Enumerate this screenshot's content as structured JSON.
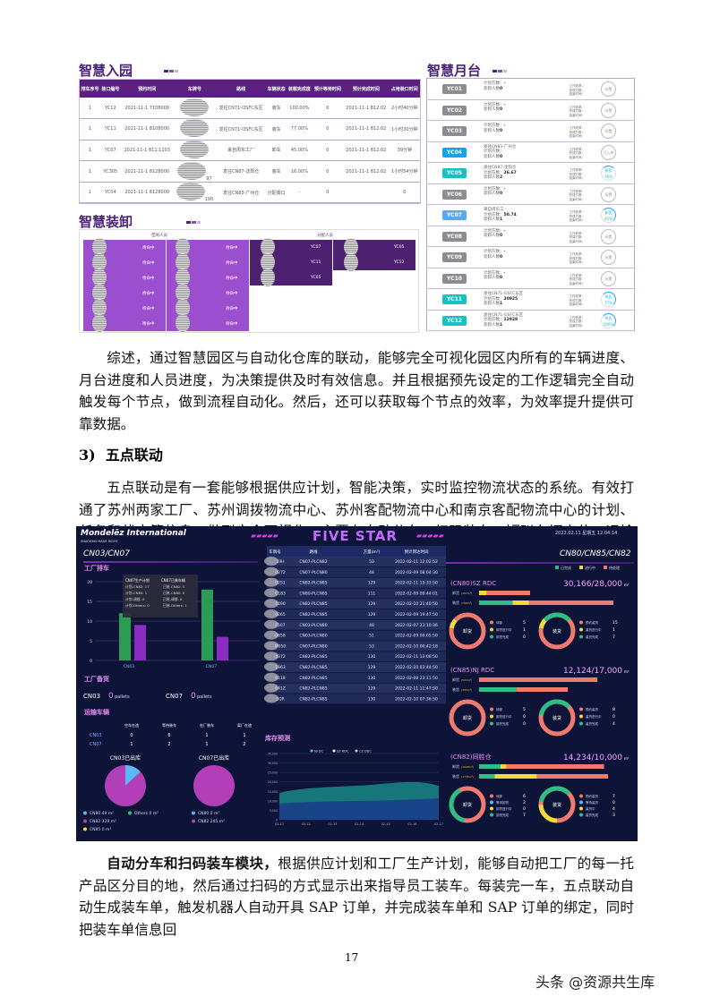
{
  "entry": {
    "title": "智慧入园",
    "headers": [
      "排车序号",
      "装口编号",
      "预约时间",
      "车牌号",
      "路线",
      "车辆状态",
      "装载完成度",
      "预计等待时间",
      "预计完成时间",
      "占用装口时间"
    ],
    "rows": [
      [
        "1",
        "YC12",
        "2021-11-1 7108000",
        "",
        "发往CN71-OSFC东区",
        "装车",
        "100.00%",
        "0",
        "2021-11-1 812:02",
        "2小时40分钟"
      ],
      [
        "1",
        "YC11",
        "2021-11-1 8108000",
        "",
        "发往CN71-OSFC东区",
        "装车",
        "77.00%",
        "0",
        "2021-11-1 812:02",
        "1小时30分钟"
      ],
      [
        "1",
        "YC07",
        "2021-11-1 811:1103",
        "",
        "来自周东工厂",
        "卸车",
        "45.00%",
        "0",
        "2021-11-1 812:02",
        "39分钟"
      ],
      [
        "1",
        "YC305",
        "2021-11-1 8128000",
        "97",
        "发往CN87-沈阳仓",
        "装车",
        "16.00%",
        "0",
        "2021-11-1 812:02",
        "1小时54分钟"
      ],
      [
        "1",
        "YC04",
        "2021-11-1 8128000",
        "190",
        "发往CN83-广州仓",
        "分配装口",
        "-",
        "0",
        "",
        "0"
      ]
    ]
  },
  "loading": {
    "title": "智慧装卸",
    "idle_label": "空闲人员",
    "assigned_label": "分配人员",
    "idle_status": "待命中",
    "assigned": [
      [
        "YC07",
        "YC05"
      ],
      [
        "YC11",
        "YC12"
      ],
      [
        "YC05",
        ""
      ]
    ]
  },
  "dock": {
    "title": "智慧月台",
    "plan_label": "计划方数：",
    "workers_label": "装卸人数",
    "eff_label": "工作效率：",
    "done_label": "完成方数：",
    "eta_label": "结束时间：",
    "rows": [
      {
        "id": "YC01",
        "color": "#8c8c92",
        "dest": "",
        "plan": "-",
        "workers": "0",
        "ring": "闲置",
        "pct": null
      },
      {
        "id": "YC02",
        "color": "#8c8c92",
        "dest": "",
        "plan": "-",
        "workers": "0",
        "ring": "闲置",
        "pct": null
      },
      {
        "id": "YC03",
        "color": "#8c8c92",
        "dest": "",
        "plan": "-",
        "workers": "0",
        "ring": "闲置",
        "pct": null
      },
      {
        "id": "YC04",
        "color": "#12a5ec",
        "dest": "发往CN83-广州仓",
        "plan": "",
        "workers": "0",
        "ring": "已入库",
        "pct": null
      },
      {
        "id": "YC05",
        "color": "#17c1c1",
        "dest": "发往CN87-沈阳仓",
        "plan": "26.67",
        "workers": "2",
        "ring": "装货 16%",
        "pct": 16
      },
      {
        "id": "YC06",
        "color": "#8c8c92",
        "dest": "",
        "plan": "-",
        "workers": "0",
        "ring": "闲置",
        "pct": null
      },
      {
        "id": "YC07",
        "color": "#5aa8f5",
        "dest": "来自周东工",
        "plan": "50.74",
        "workers": "1",
        "ring": "卸货 45%",
        "pct": 45
      },
      {
        "id": "YC08",
        "color": "#8c8c92",
        "dest": "",
        "plan": "-",
        "workers": "0",
        "ring": "闲置",
        "pct": null
      },
      {
        "id": "YC09",
        "color": "#8c8c92",
        "dest": "",
        "plan": "-",
        "workers": "0",
        "ring": "闲置",
        "pct": null
      },
      {
        "id": "YC10",
        "color": "#8c8c92",
        "dest": "",
        "plan": "-",
        "workers": "0",
        "ring": "闲置",
        "pct": null
      },
      {
        "id": "YC11",
        "color": "#17c1c1",
        "dest": "发往CN71-OSFC东区",
        "plan": "20925",
        "workers": "1",
        "ring": "装货 77%",
        "pct": 77
      },
      {
        "id": "YC12",
        "color": "#17c1c1",
        "dest": "发往CN71-OSFC东区",
        "plan": "12928",
        "workers": "1",
        "ring": "装货 100%",
        "pct": 100
      }
    ]
  },
  "para1": "综述，通过智慧园区与自动化仓库的联动，能够完全可视化园区内所有的车辆进度、月台进度和人员进度，为决策提供及时有效信息。并且根据预先设定的工作逻辑完全自动触发每个节点，做到流程自动化。然后，还可以获取每个节点的效率，为效率提升提供可靠数据。",
  "heading": "3)  五点联动",
  "para2": "五点联动是有一套能够根据供应计划，智能决策，实时监控物流状态的系统。有效打通了苏州两家工厂、苏州调拨物流中心、苏州客配物流中心和南京客配物流中心的计划、任务和状态等信息，做到完全可视化。主要有自动分车、扫码装车、短驳车辆定位、运输任务跟进等模块。",
  "para3_bold": "自动分车和扫码装车模块，",
  "para3": "根据供应计划和工厂生产计划，能够自动把工厂的每一托产品区分目的地，然后通过扫码的方式显示出来指导员工装车。每装完一车，五点联动自动生成装车单，触发机器人自动开具 SAP 订单，并完成装车单和 SAP 订单的绑定，同时把装车单信息回",
  "page_number": "17",
  "watermark": "头条 @资源共生库",
  "dashboard": {
    "logo": "Mondelēz International",
    "logo_sub": "SNACKING MADE RIGHT",
    "banner": "FIVE STAR",
    "datetime": "2022.02.11 星期五 12:04:14",
    "left_title": "CN03/CN07",
    "factory_title": "工厂排车",
    "bar_chart": {
      "categories": [
        "CN03",
        "CN07"
      ],
      "series": [
        {
          "values": [
            12,
            9
          ]
        },
        {
          "values": [
            18,
            6
          ]
        }
      ],
      "y_ticks": [
        "0",
        "5",
        "10",
        "15",
        "20"
      ],
      "ymax": 20
    },
    "tooltip": {
      "t1": "CN07生产计划",
      "t2": "CN07已装车辆",
      "l": [
        "计划-CN82: 17",
        "计划-CN80: 1",
        "计划-调拨: 0",
        "计划-Others: 0"
      ],
      "r": [
        "已装-CN82: 5",
        "已装-CN80: 0",
        "已装-调拨: 0",
        "已装-Others: 1"
      ]
    },
    "stock_title": "工厂备货",
    "stock": [
      {
        "site": "CN03",
        "value": "0",
        "unit": "pallets"
      },
      {
        "site": "CN07",
        "value": "0",
        "unit": "pallets"
      }
    ],
    "transport_title": "运输车辆",
    "transport_headers": [
      "",
      "空车在途",
      "等待装车",
      "在厂装车",
      "离厂在途"
    ],
    "transport_rows": [
      [
        "CN03",
        "0",
        "6",
        "1",
        "1"
      ],
      [
        "CN07",
        "1",
        "2",
        "1",
        "2"
      ]
    ],
    "pies": [
      {
        "title": "CN03已出库",
        "legend": [
          "CN80  49 m²",
          "Others  0 m²",
          "CN82  329 m²",
          "CN85  0 m²"
        ],
        "slice_pct": 13
      },
      {
        "title": "CN07已出库",
        "legend": [
          "CN80  0 m²",
          "CN82  245 m²"
        ],
        "slice_pct": 0
      }
    ],
    "truck_headers": [
      "车牌号",
      "路线",
      "方量(m³)",
      "预计到达时间"
    ],
    "trucks": [
      [
        "19H",
        "CN07-PLCN82",
        "50",
        "2022-02-11 12:02:52"
      ],
      [
        "0272",
        "CN07-PLCN80",
        "48",
        "2022-02-09 08:04:30"
      ],
      [
        "0251",
        "CN82-PLCN85",
        "129",
        "2022-02-11 15:33:50"
      ],
      [
        "C183",
        "CN80-PLCN85",
        "111",
        "2022-02-09 09:44:01"
      ],
      [
        "1090",
        "CN82-PLCN85",
        "129",
        "2022-02-10 21:40:50"
      ],
      [
        "0265",
        "CN82-PLCN85",
        "129",
        "2022-02-09 19:47:50"
      ],
      [
        "F507",
        "CN03-PLCN80",
        "48",
        "2022-02-07 23:10:36"
      ],
      [
        "0858",
        "CN03-PLCN80",
        "51",
        "2022-02-09 00:05:50"
      ],
      [
        "M050",
        "CN07-PLCN80",
        "53",
        "2022-02-10 00:42:18"
      ],
      [
        "4372",
        "CN82-PLCN85",
        "130",
        "2022-02-11 13:06:50"
      ],
      [
        "1963",
        "CN82-PLCN85",
        "129",
        "2022-02-10 03:44:50"
      ],
      [
        "0118",
        "CN82-PLCN85",
        "130",
        "2022-02-08 23:11:50"
      ],
      [
        "641Z",
        "CN82-PLCN85",
        "129",
        "2022-02-11 11:47:50"
      ],
      [
        "5QR",
        "CN82-PLCN85",
        "130",
        "2022-02-10 07:36:50"
      ]
    ],
    "forecast_title": "库存预测",
    "forecast_legend": [
      "NJ DC",
      "SZ RDC",
      "CZ DDC"
    ],
    "forecast_x": [
      "02-11",
      "02-12",
      "02-13",
      "02-14",
      "02-15",
      "02-16",
      "02-17"
    ],
    "forecast_y": [
      "0",
      "5,000",
      "10,000",
      "15,000",
      "20,000",
      "25,000",
      "30,000",
      "35,000"
    ],
    "right_title": "CN80/CN85/CN82",
    "status_legend": [
      "已完成",
      "进行中",
      "待处理"
    ],
    "sites": [
      {
        "name": "(CN80)SZ RDC",
        "capacity": "30,166/28,000",
        "unit": "m²",
        "bars": [
          {
            "label": "卸货",
            "sub": "(302m³)",
            "seg": [
              0,
              15,
              85
            ],
            "len": 0.38
          },
          {
            "label": "装货",
            "sub": "(768m³)",
            "seg": [
              25,
              12,
              63
            ],
            "len": 1
          }
        ],
        "donuts": [
          {
            "center": "卸货",
            "items": [
              [
                "待卸",
                "5"
              ],
              [
                "卸货进行中",
                "1"
              ],
              [
                "卸货完成",
                "0"
              ]
            ]
          },
          {
            "center": "装货",
            "items": [
              [
                "预约装货",
                "15"
              ],
              [
                "装货进行中",
                "1"
              ],
              [
                "装货完成",
                "7"
              ]
            ]
          }
        ]
      },
      {
        "name": "(CN85)NJ RDC",
        "capacity": "12,124/17,000",
        "unit": "m²",
        "bars": [
          {
            "label": "卸货",
            "sub": "(531m³)",
            "seg": [
              0,
              0,
              100
            ],
            "len": 0.88
          },
          {
            "label": "装货",
            "sub": "(399m³)",
            "seg": [
              42,
              0,
              58
            ],
            "len": 0.66
          }
        ],
        "donuts": [
          {
            "center": "卸货",
            "items": [
              [
                "待卸",
                "5"
              ],
              [
                "卸货进行中",
                "0"
              ],
              [
                "卸货完成",
                "0"
              ]
            ]
          },
          {
            "center": "装货",
            "items": [
              [
                "预约装货",
                "8"
              ],
              [
                "装货进行中",
                "0"
              ],
              [
                "装货完成",
                "4"
              ]
            ]
          }
        ]
      },
      {
        "name": "(CN82)同胜仓",
        "capacity": "14,234/10,000",
        "unit": "m²",
        "bars": [
          {
            "label": "卸货",
            "sub": "(1608m³)",
            "seg": [
              17,
              5,
              78
            ],
            "len": 0.93
          },
          {
            "label": "装货",
            "sub": "(1735m³)",
            "seg": [
              12,
              33,
              55
            ],
            "len": 0.96
          }
        ],
        "donuts": [
          {
            "center": "卸货",
            "items": [
              [
                "待卸",
                "6"
              ],
              [
                "等待卸货",
                "2"
              ],
              [
                "卸货进行中",
                "0"
              ],
              [
                "卸货完成",
                "7"
              ]
            ]
          },
          {
            "center": "装货",
            "items": [
              [
                "预约装货",
                "7"
              ],
              [
                "等待装货",
                "0"
              ],
              [
                "装货中",
                "4"
              ],
              [
                "装货完成",
                "3"
              ]
            ]
          }
        ]
      }
    ],
    "colors": {
      "done": "#2bbf85",
      "doing": "#f0d93a",
      "todo": "#ef7b70",
      "green": "#2a9d55",
      "purple": "#8a2bc2",
      "pie_main": "#b23fb8",
      "pie_light": "#5ab8f5"
    }
  }
}
